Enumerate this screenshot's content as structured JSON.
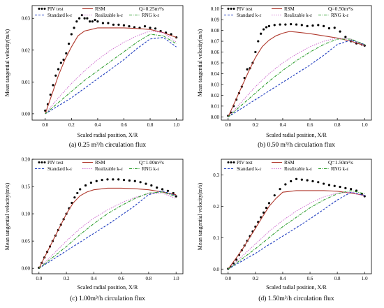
{
  "figure": {
    "colors": {
      "piv": "#000000",
      "rsm": "#b03a2e",
      "standard": "#1f3dbf",
      "realizable": "#d070d0",
      "rng": "#2e9e2e"
    }
  },
  "chart_data": [
    {
      "type": "line",
      "caption": "(a) 0.25 m³/h circulation flux",
      "flux_label": "Q=0.25m³/s",
      "xlabel": "Scaled radial position, X/R",
      "ylabel": "Mean tangential velocity(m/s)",
      "xlim": [
        -0.1,
        1.05
      ],
      "ylim": [
        -0.002,
        0.034
      ],
      "xticks": [
        "0.0",
        "0.2",
        "0.4",
        "0.6",
        "0.8",
        "1.0"
      ],
      "yticks": [
        "0.00",
        "0.01",
        "0.02",
        "0.03"
      ],
      "legend": [
        "PIV test",
        "RSM",
        "Standard k-ε",
        "Realizable k-ε",
        "RNG k-ε"
      ],
      "series": [
        {
          "name": "PIV test",
          "x": [
            0.0,
            0.02,
            0.04,
            0.06,
            0.08,
            0.1,
            0.12,
            0.14,
            0.16,
            0.18,
            0.2,
            0.22,
            0.24,
            0.26,
            0.28,
            0.3,
            0.32,
            0.34,
            0.36,
            0.38,
            0.4,
            0.44,
            0.48,
            0.52,
            0.56,
            0.6,
            0.64,
            0.68,
            0.72,
            0.76,
            0.8,
            0.84,
            0.88,
            0.92,
            0.96,
            1.0
          ],
          "y": [
            0.001,
            0.003,
            0.006,
            0.009,
            0.012,
            0.014,
            0.016,
            0.017,
            0.019,
            0.022,
            0.025,
            0.027,
            0.029,
            0.03,
            0.031,
            0.03,
            0.03,
            0.029,
            0.029,
            0.0295,
            0.029,
            0.0285,
            0.0285,
            0.028,
            0.028,
            0.0278,
            0.0275,
            0.0272,
            0.027,
            0.0275,
            0.027,
            0.0268,
            0.026,
            0.0255,
            0.025,
            0.024
          ]
        },
        {
          "name": "RSM",
          "x": [
            0.0,
            0.05,
            0.1,
            0.15,
            0.2,
            0.25,
            0.3,
            0.35,
            0.4,
            0.5,
            0.6,
            0.7,
            0.8,
            0.9,
            1.0
          ],
          "y": [
            0.0,
            0.006,
            0.012,
            0.017,
            0.021,
            0.0245,
            0.026,
            0.0265,
            0.027,
            0.027,
            0.027,
            0.0268,
            0.0265,
            0.0255,
            0.024
          ]
        },
        {
          "name": "Standard k-ε",
          "x": [
            0.0,
            0.1,
            0.2,
            0.3,
            0.4,
            0.5,
            0.6,
            0.7,
            0.8,
            0.9,
            1.0
          ],
          "y": [
            0.0,
            0.0025,
            0.005,
            0.008,
            0.011,
            0.014,
            0.017,
            0.0205,
            0.0235,
            0.024,
            0.021
          ]
        },
        {
          "name": "Realizable k-ε",
          "x": [
            0.0,
            0.1,
            0.2,
            0.3,
            0.4,
            0.5,
            0.6,
            0.7,
            0.8,
            0.9,
            1.0
          ],
          "y": [
            0.0,
            0.005,
            0.0095,
            0.0135,
            0.017,
            0.02,
            0.0225,
            0.0245,
            0.026,
            0.0255,
            0.0225
          ]
        },
        {
          "name": "RNG k-ε",
          "x": [
            0.0,
            0.1,
            0.2,
            0.3,
            0.4,
            0.5,
            0.6,
            0.7,
            0.8,
            0.9,
            1.0
          ],
          "y": [
            0.0,
            0.0035,
            0.007,
            0.0105,
            0.0135,
            0.0165,
            0.0195,
            0.0225,
            0.025,
            0.0245,
            0.022
          ]
        }
      ]
    },
    {
      "type": "line",
      "caption": "(b) 0.50 m³/h circulation flux",
      "flux_label": "Q=0.50m³/s",
      "xlabel": "Scaled radial position, X/R",
      "ylabel": "Mean tangential velocity(m/s)",
      "xlim": [
        -0.05,
        1.05
      ],
      "ylim": [
        -0.003,
        0.103
      ],
      "xticks": [
        "0.0",
        "0.2",
        "0.4",
        "0.6",
        "0.8",
        "1.0"
      ],
      "yticks": [
        "0.00",
        "0.01",
        "0.02",
        "0.03",
        "0.04",
        "0.05",
        "0.06",
        "0.07",
        "0.08",
        "0.09",
        "0.10"
      ],
      "legend": [
        "PIV test",
        "RSM",
        "Standard k-ε",
        "Realizable k-ε",
        "RNG k-ε"
      ],
      "series": [
        {
          "name": "PIV test",
          "x": [
            0.0,
            0.02,
            0.04,
            0.06,
            0.08,
            0.1,
            0.12,
            0.14,
            0.16,
            0.18,
            0.2,
            0.22,
            0.24,
            0.26,
            0.28,
            0.3,
            0.34,
            0.38,
            0.42,
            0.46,
            0.5,
            0.54,
            0.58,
            0.62,
            0.66,
            0.7,
            0.74,
            0.78,
            0.82,
            0.86,
            0.9,
            0.94,
            0.98,
            1.0
          ],
          "y": [
            0.001,
            0.004,
            0.01,
            0.016,
            0.022,
            0.028,
            0.036,
            0.044,
            0.045,
            0.05,
            0.06,
            0.07,
            0.077,
            0.081,
            0.083,
            0.084,
            0.085,
            0.0855,
            0.0855,
            0.0858,
            0.0855,
            0.085,
            0.084,
            0.0845,
            0.085,
            0.084,
            0.082,
            0.0825,
            0.079,
            0.074,
            0.07,
            0.068,
            0.067,
            0.066
          ]
        },
        {
          "name": "RSM",
          "x": [
            0.0,
            0.05,
            0.1,
            0.15,
            0.2,
            0.25,
            0.3,
            0.35,
            0.4,
            0.45,
            0.5,
            0.6,
            0.7,
            0.8,
            0.9,
            1.0
          ],
          "y": [
            0.0,
            0.014,
            0.028,
            0.042,
            0.055,
            0.065,
            0.071,
            0.075,
            0.0775,
            0.079,
            0.0785,
            0.077,
            0.075,
            0.073,
            0.07,
            0.066
          ]
        },
        {
          "name": "Standard k-ε",
          "x": [
            0.0,
            0.1,
            0.2,
            0.3,
            0.4,
            0.5,
            0.6,
            0.7,
            0.8,
            0.9,
            1.0
          ],
          "y": [
            0.0,
            0.008,
            0.016,
            0.024,
            0.032,
            0.04,
            0.048,
            0.057,
            0.067,
            0.071,
            0.067
          ]
        },
        {
          "name": "Realizable k-ε",
          "x": [
            0.0,
            0.1,
            0.2,
            0.3,
            0.4,
            0.5,
            0.6,
            0.7,
            0.8,
            0.9,
            1.0
          ],
          "y": [
            0.0,
            0.014,
            0.028,
            0.04,
            0.05,
            0.058,
            0.065,
            0.07,
            0.073,
            0.072,
            0.066
          ]
        },
        {
          "name": "RNG k-ε",
          "x": [
            0.0,
            0.1,
            0.2,
            0.3,
            0.4,
            0.5,
            0.6,
            0.7,
            0.8,
            0.9,
            1.0
          ],
          "y": [
            0.0,
            0.011,
            0.022,
            0.033,
            0.043,
            0.052,
            0.06,
            0.067,
            0.072,
            0.072,
            0.067
          ]
        }
      ]
    },
    {
      "type": "line",
      "caption": "(c) 1.00m³/h circulation flux",
      "flux_label": "Q=1.00m³/s",
      "xlabel": "Scaled radial position, X/R",
      "ylabel": "Mean tangential velocity(m/s)",
      "xlim": [
        -0.05,
        1.05
      ],
      "ylim": [
        -0.01,
        0.2
      ],
      "xticks": [
        "0.0",
        "0.2",
        "0.4",
        "0.6",
        "0.8",
        "1.0"
      ],
      "yticks": [
        "0.00",
        "0.05",
        "0.10",
        "0.15",
        "0.20"
      ],
      "legend": [
        "PIV test",
        "RSM",
        "Standard k-ε",
        "Realizable k-ε",
        "RNG k-ε"
      ],
      "series": [
        {
          "name": "PIV test",
          "x": [
            0.0,
            0.02,
            0.04,
            0.06,
            0.08,
            0.1,
            0.12,
            0.14,
            0.16,
            0.18,
            0.2,
            0.22,
            0.24,
            0.26,
            0.28,
            0.3,
            0.34,
            0.38,
            0.42,
            0.46,
            0.5,
            0.54,
            0.58,
            0.62,
            0.66,
            0.7,
            0.74,
            0.78,
            0.82,
            0.86,
            0.9,
            0.94,
            0.98,
            1.0
          ],
          "y": [
            0.001,
            0.01,
            0.02,
            0.03,
            0.04,
            0.05,
            0.06,
            0.07,
            0.08,
            0.09,
            0.1,
            0.11,
            0.12,
            0.13,
            0.138,
            0.145,
            0.152,
            0.157,
            0.16,
            0.162,
            0.163,
            0.163,
            0.163,
            0.162,
            0.161,
            0.16,
            0.158,
            0.155,
            0.152,
            0.148,
            0.145,
            0.142,
            0.138,
            0.132
          ]
        },
        {
          "name": "RSM",
          "x": [
            0.0,
            0.05,
            0.1,
            0.15,
            0.2,
            0.25,
            0.3,
            0.35,
            0.4,
            0.5,
            0.6,
            0.7,
            0.8,
            0.9,
            1.0
          ],
          "y": [
            0.0,
            0.025,
            0.05,
            0.075,
            0.1,
            0.12,
            0.133,
            0.14,
            0.144,
            0.147,
            0.147,
            0.146,
            0.144,
            0.14,
            0.135
          ]
        },
        {
          "name": "Standard k-ε",
          "x": [
            0.0,
            0.1,
            0.2,
            0.3,
            0.4,
            0.5,
            0.6,
            0.7,
            0.8,
            0.9,
            1.0
          ],
          "y": [
            0.0,
            0.016,
            0.032,
            0.048,
            0.064,
            0.08,
            0.097,
            0.115,
            0.135,
            0.142,
            0.133
          ]
        },
        {
          "name": "Realizable k-ε",
          "x": [
            0.0,
            0.1,
            0.2,
            0.3,
            0.4,
            0.5,
            0.6,
            0.7,
            0.8,
            0.9,
            1.0
          ],
          "y": [
            0.0,
            0.025,
            0.05,
            0.073,
            0.092,
            0.107,
            0.12,
            0.13,
            0.137,
            0.138,
            0.128
          ]
        },
        {
          "name": "RNG k-ε",
          "x": [
            0.0,
            0.1,
            0.2,
            0.3,
            0.4,
            0.5,
            0.6,
            0.7,
            0.8,
            0.9,
            1.0
          ],
          "y": [
            0.0,
            0.02,
            0.04,
            0.062,
            0.082,
            0.1,
            0.115,
            0.128,
            0.138,
            0.14,
            0.132
          ]
        }
      ]
    },
    {
      "type": "line",
      "caption": "(d) 1.50m³/h circulation flux",
      "flux_label": "Q=1.50m³/s",
      "xlabel": "Scaled radial position, X/R",
      "ylabel": "Mean tangential velocity(m/s)",
      "xlim": [
        -0.05,
        1.05
      ],
      "ylim": [
        -0.015,
        0.35
      ],
      "xticks": [
        "0.0",
        "0.2",
        "0.4",
        "0.6",
        "0.8",
        "1.0"
      ],
      "yticks": [
        "0.0",
        "0.1",
        "0.2",
        "0.3"
      ],
      "legend": [
        "PIV test",
        "RSM",
        "Standard k-ε",
        "Realizable k-ε",
        "RNG k-ε"
      ],
      "series": [
        {
          "name": "PIV test",
          "x": [
            0.0,
            0.02,
            0.04,
            0.06,
            0.08,
            0.1,
            0.12,
            0.14,
            0.16,
            0.18,
            0.2,
            0.22,
            0.24,
            0.26,
            0.28,
            0.3,
            0.34,
            0.38,
            0.42,
            0.46,
            0.5,
            0.54,
            0.58,
            0.62,
            0.66,
            0.7,
            0.74,
            0.78,
            0.82,
            0.86,
            0.9,
            0.94,
            0.98,
            1.0
          ],
          "y": [
            0.001,
            0.008,
            0.018,
            0.03,
            0.045,
            0.06,
            0.075,
            0.09,
            0.105,
            0.12,
            0.135,
            0.15,
            0.165,
            0.18,
            0.195,
            0.21,
            0.235,
            0.255,
            0.27,
            0.28,
            0.287,
            0.285,
            0.283,
            0.28,
            0.277,
            0.272,
            0.268,
            0.265,
            0.262,
            0.258,
            0.255,
            0.25,
            0.24,
            0.232
          ]
        },
        {
          "name": "RSM",
          "x": [
            0.0,
            0.05,
            0.1,
            0.15,
            0.2,
            0.25,
            0.3,
            0.35,
            0.4,
            0.5,
            0.6,
            0.7,
            0.8,
            0.9,
            1.0
          ],
          "y": [
            0.0,
            0.03,
            0.06,
            0.095,
            0.13,
            0.165,
            0.2,
            0.225,
            0.245,
            0.25,
            0.25,
            0.25,
            0.248,
            0.242,
            0.235
          ]
        },
        {
          "name": "Standard k-ε",
          "x": [
            0.0,
            0.1,
            0.2,
            0.3,
            0.4,
            0.5,
            0.6,
            0.7,
            0.8,
            0.9,
            1.0
          ],
          "y": [
            0.0,
            0.025,
            0.05,
            0.078,
            0.105,
            0.132,
            0.16,
            0.19,
            0.22,
            0.245,
            0.235
          ]
        },
        {
          "name": "Realizable k-ε",
          "x": [
            0.0,
            0.1,
            0.2,
            0.3,
            0.4,
            0.5,
            0.6,
            0.7,
            0.8,
            0.9,
            1.0
          ],
          "y": [
            0.0,
            0.04,
            0.08,
            0.12,
            0.155,
            0.185,
            0.21,
            0.23,
            0.242,
            0.245,
            0.232
          ]
        },
        {
          "name": "RNG k-ε",
          "x": [
            0.0,
            0.1,
            0.2,
            0.3,
            0.4,
            0.5,
            0.6,
            0.7,
            0.8,
            0.9,
            1.0
          ],
          "y": [
            0.0,
            0.032,
            0.065,
            0.1,
            0.135,
            0.165,
            0.195,
            0.22,
            0.24,
            0.25,
            0.24
          ]
        }
      ]
    }
  ]
}
